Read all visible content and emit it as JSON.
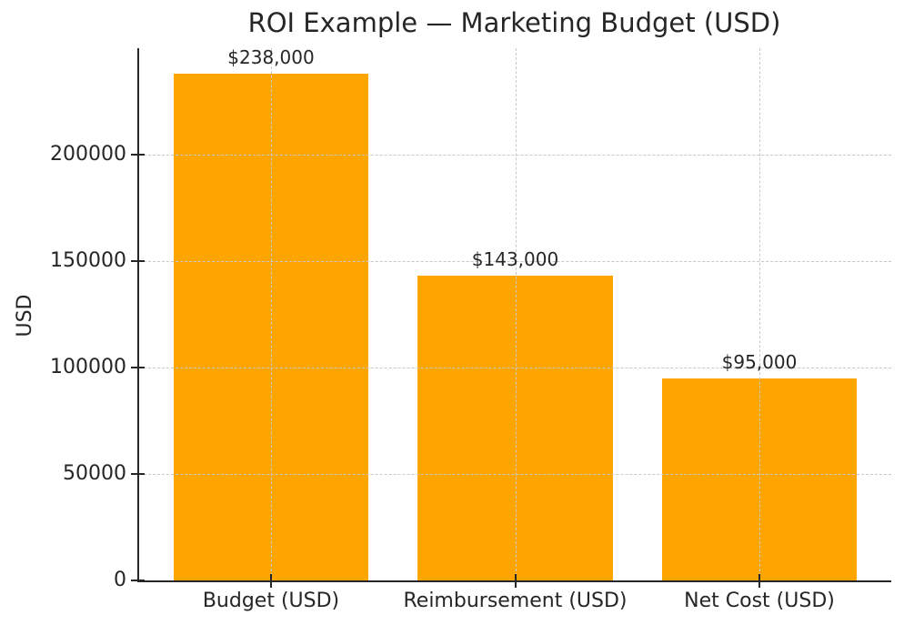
{
  "chart_data": {
    "type": "bar",
    "title": "ROI Example — Marketing Budget (USD)",
    "xlabel": "",
    "ylabel": "USD",
    "categories": [
      "Budget (USD)",
      "Reimbursement (USD)",
      "Net Cost (USD)"
    ],
    "values": [
      238000,
      143000,
      95000
    ],
    "value_labels": [
      "$238,000",
      "$143,000",
      "$95,000"
    ],
    "yticks": [
      0,
      50000,
      100000,
      150000,
      200000
    ],
    "ytick_labels": [
      "0",
      "50000",
      "100000",
      "150000",
      "200000"
    ],
    "ylim": [
      0,
      249900
    ],
    "grid": true,
    "grid_style": "dashed",
    "grid_over_bars": true,
    "legend": "none",
    "colors": {
      "bar": "#FFA500",
      "grid": "#c8c8c8",
      "text": "#262626",
      "spine": "#262626",
      "background": "#ffffff"
    }
  }
}
